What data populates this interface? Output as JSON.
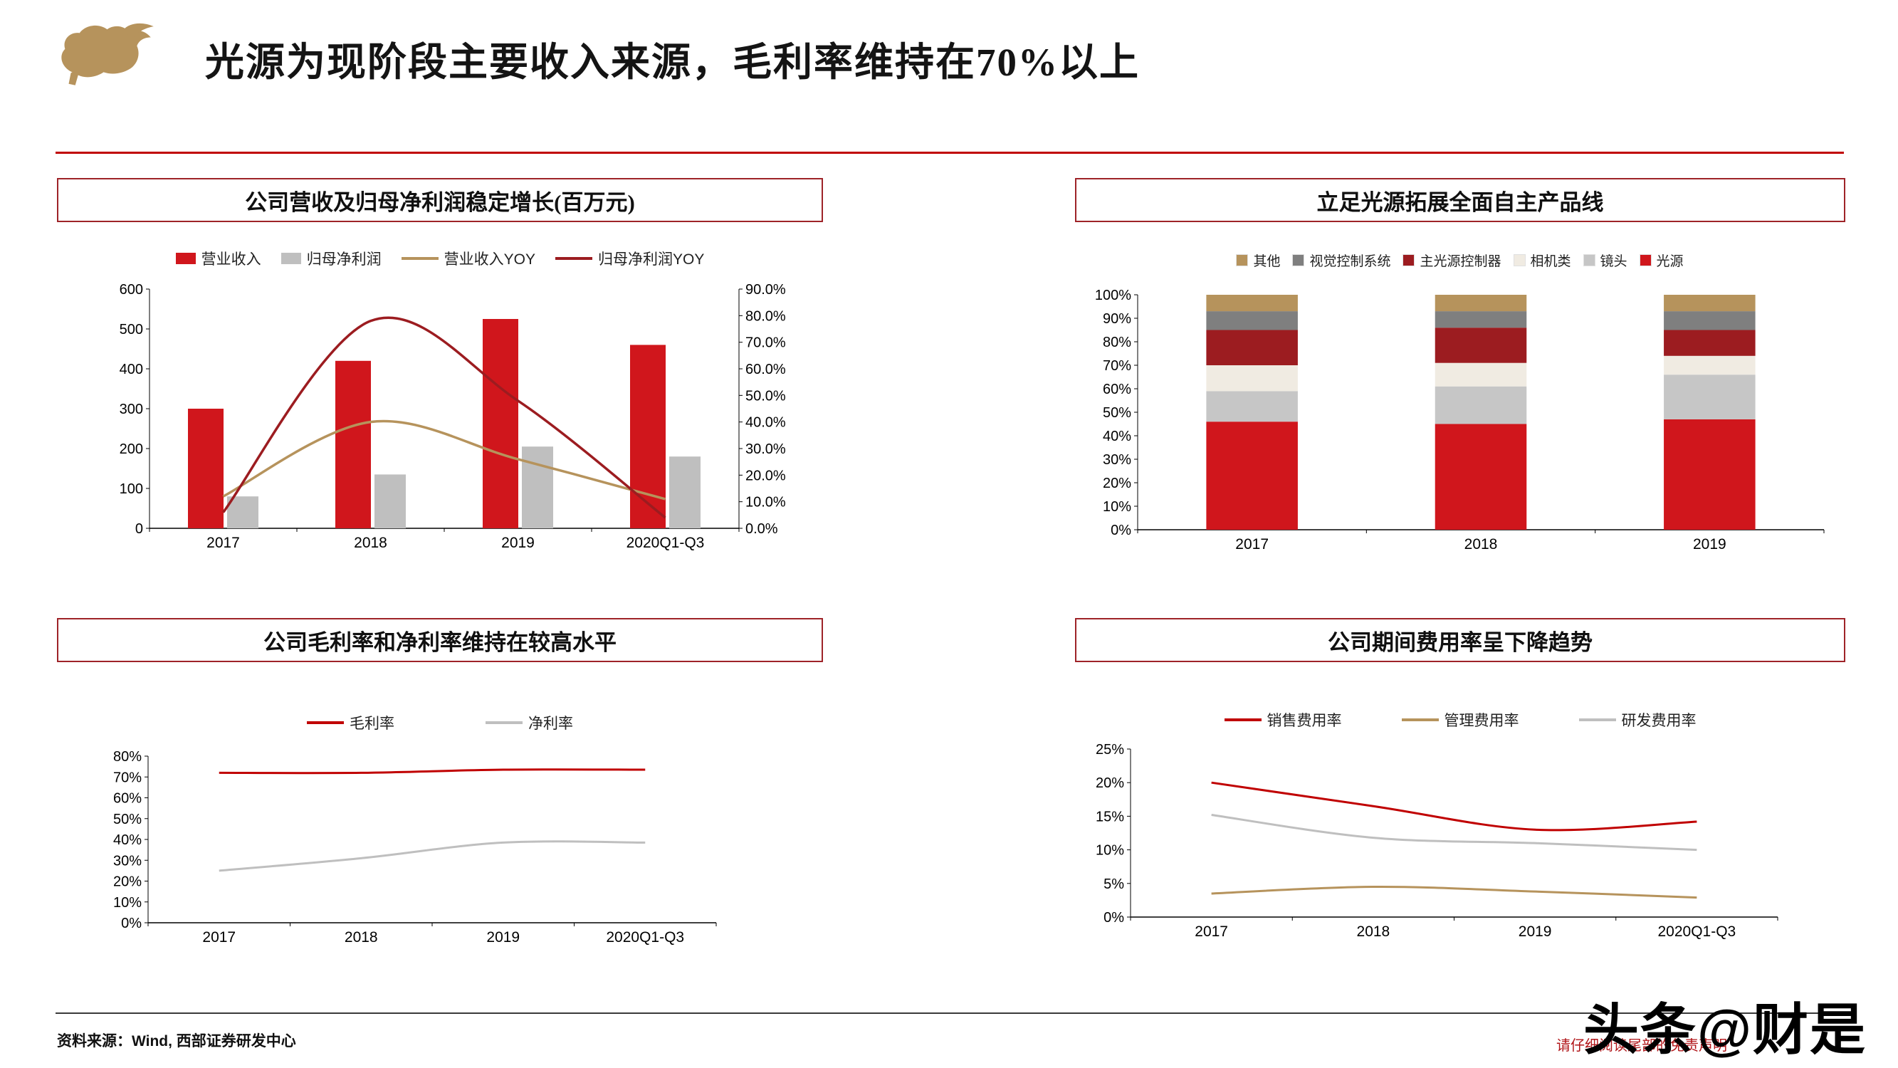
{
  "header": {
    "title": "光源为现阶段主要收入来源，毛利率维持在70%以上"
  },
  "colors": {
    "accent_red": "#c00000",
    "bar_red": "#d0161c",
    "bar_gray": "#bfbfbf",
    "tan": "#b6935c",
    "dark_red": "#9c1c20",
    "light_gray": "#c6c6c6",
    "cream": "#f0ebe2",
    "mid_gray": "#7f7f7f",
    "box_border": "#9e2328"
  },
  "panels": [
    {
      "title": "公司营收及归母净利润稳定增长(百万元)",
      "legend": [
        {
          "label": "营业收入",
          "swatch": "rect",
          "color": "#d0161c"
        },
        {
          "label": "归母净利润",
          "swatch": "rect",
          "color": "#bfbfbf"
        },
        {
          "label": "营业收入YOY",
          "swatch": "line",
          "color": "#b6935c"
        },
        {
          "label": "归母净利润YOY",
          "swatch": "line",
          "color": "#9c1c20"
        }
      ]
    },
    {
      "title": "立足光源拓展全面自主产品线",
      "legend": [
        {
          "label": "其他",
          "swatch": "sq",
          "color": "#b6935c"
        },
        {
          "label": "视觉控制系统",
          "swatch": "sq",
          "color": "#7f7f7f"
        },
        {
          "label": "主光源控制器",
          "swatch": "sq",
          "color": "#9c1c20"
        },
        {
          "label": "相机类",
          "swatch": "sq",
          "color": "#f0ebe2"
        },
        {
          "label": "镜头",
          "swatch": "sq",
          "color": "#c6c6c6"
        },
        {
          "label": "光源",
          "swatch": "sq",
          "color": "#d0161c"
        }
      ]
    },
    {
      "title": "公司毛利率和净利率维持在较高水平",
      "legend": [
        {
          "label": "毛利率",
          "swatch": "line",
          "color": "#c00000"
        },
        {
          "label": "净利率",
          "swatch": "line",
          "color": "#bfbfbf"
        }
      ]
    },
    {
      "title": "公司期间费用率呈下降趋势",
      "legend": [
        {
          "label": "销售费用率",
          "swatch": "line",
          "color": "#c00000"
        },
        {
          "label": "管理费用率",
          "swatch": "line",
          "color": "#b6935c"
        },
        {
          "label": "研发费用率",
          "swatch": "line",
          "color": "#bfbfbf"
        }
      ]
    }
  ],
  "chart_data": [
    {
      "type": "combo",
      "title": "公司营收及归母净利润稳定增长(百万元)",
      "categories": [
        "2017",
        "2018",
        "2019",
        "2020Q1-Q3"
      ],
      "bar_series": [
        {
          "name": "营业收入",
          "color": "#d0161c",
          "values": [
            300,
            420,
            525,
            460
          ]
        },
        {
          "name": "归母净利润",
          "color": "#bfbfbf",
          "values": [
            80,
            135,
            205,
            180
          ]
        }
      ],
      "line_series": [
        {
          "name": "营业收入YOY",
          "color": "#b6935c",
          "values": [
            12,
            40,
            26,
            11
          ]
        },
        {
          "name": "归母净利润YOY",
          "color": "#9c1c20",
          "values": [
            6,
            78,
            48,
            4
          ]
        }
      ],
      "left_axis": {
        "min": 0,
        "max": 600,
        "step": 100,
        "format": "int"
      },
      "right_axis": {
        "min": 0,
        "max": 90,
        "step": 10,
        "format": "pct1"
      },
      "grid": false,
      "legend_position": "top"
    },
    {
      "type": "stacked100",
      "title": "立足光源拓展全面自主产品线",
      "categories": [
        "2017",
        "2018",
        "2019"
      ],
      "series": [
        {
          "name": "光源",
          "color": "#d0161c",
          "values": [
            46,
            45,
            47
          ]
        },
        {
          "name": "镜头",
          "color": "#c6c6c6",
          "values": [
            13,
            16,
            19
          ]
        },
        {
          "name": "相机类",
          "color": "#f0ebe2",
          "values": [
            11,
            10,
            8
          ]
        },
        {
          "name": "主光源控制器",
          "color": "#9c1c20",
          "values": [
            15,
            15,
            11
          ]
        },
        {
          "name": "视觉控制系统",
          "color": "#7f7f7f",
          "values": [
            8,
            7,
            8
          ]
        },
        {
          "name": "其他",
          "color": "#b6935c",
          "values": [
            7,
            7,
            7
          ]
        }
      ],
      "axis": {
        "min": 0,
        "max": 100,
        "step": 10,
        "format": "pct0"
      },
      "grid": false,
      "legend_position": "top"
    },
    {
      "type": "line",
      "title": "公司毛利率和净利率维持在较高水平",
      "categories": [
        "2017",
        "2018",
        "2019",
        "2020Q1-Q3"
      ],
      "series": [
        {
          "name": "毛利率",
          "color": "#c00000",
          "values": [
            72,
            72,
            73.5,
            73.5
          ]
        },
        {
          "name": "净利率",
          "color": "#bfbfbf",
          "values": [
            25,
            31,
            38.5,
            38.5
          ]
        }
      ],
      "axis": {
        "min": 0,
        "max": 80,
        "step": 10,
        "format": "pct0"
      },
      "grid": false,
      "legend_position": "top"
    },
    {
      "type": "line",
      "title": "公司期间费用率呈下降趋势",
      "categories": [
        "2017",
        "2018",
        "2019",
        "2020Q1-Q3"
      ],
      "series": [
        {
          "name": "销售费用率",
          "color": "#c00000",
          "values": [
            20,
            16.5,
            13,
            14.2
          ]
        },
        {
          "name": "管理费用率",
          "color": "#b6935c",
          "values": [
            3.5,
            4.5,
            3.8,
            2.9
          ]
        },
        {
          "name": "研发费用率",
          "color": "#bfbfbf",
          "values": [
            15.2,
            11.8,
            11,
            10
          ]
        }
      ],
      "axis": {
        "min": 0,
        "max": 25,
        "step": 5,
        "format": "pct0"
      },
      "grid": false,
      "legend_position": "top"
    }
  ],
  "footer": {
    "source": "资料来源：Wind, 西部证券研发中心",
    "disclaimer": "请仔细阅读尾部的免责声明",
    "watermark": "头条@财是"
  }
}
